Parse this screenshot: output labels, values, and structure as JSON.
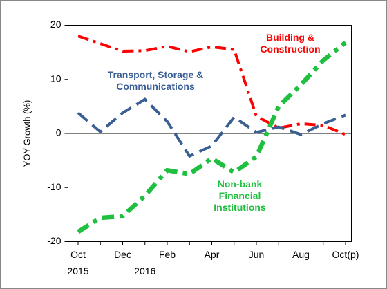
{
  "chart_data": {
    "type": "line",
    "y_label": "YOY Growth (%)",
    "categories": [
      "Oct",
      null,
      "Dec",
      null,
      "Feb",
      null,
      "Apr",
      null,
      "Jun",
      null,
      "Aug",
      null,
      "Oct(p)"
    ],
    "years": [
      "2015",
      null,
      null,
      "2016",
      null,
      null,
      null,
      null,
      null,
      null,
      null,
      null,
      null
    ],
    "ylim": [
      -20,
      20
    ],
    "yticks": [
      -20,
      -10,
      0,
      10,
      20
    ],
    "series": [
      {
        "name": "Building & Construction",
        "color": "#ff0000",
        "dash": "dash-dot",
        "values": [
          18,
          16.6,
          15.2,
          15.3,
          16.1,
          15.1,
          16,
          15.5,
          3.2,
          1,
          1.8,
          1.5,
          -0.2
        ]
      },
      {
        "name": "Transport, Storage & Communications",
        "color": "#3a5f94",
        "dash": "dash",
        "values": [
          3.8,
          0.3,
          3.8,
          6.3,
          2.2,
          -4.2,
          -2.3,
          3,
          0.2,
          1.2,
          -0.2,
          1.8,
          3.4
        ]
      },
      {
        "name": "Non-bank Financial Institutions",
        "color": "#1fbf3f",
        "dash": "dash-dot-thick",
        "values": [
          -18.2,
          -15.6,
          -15.3,
          -11.5,
          -6.8,
          -7.5,
          -4.6,
          -7.2,
          -4.3,
          5,
          9,
          13.5,
          16.8
        ]
      }
    ]
  }
}
